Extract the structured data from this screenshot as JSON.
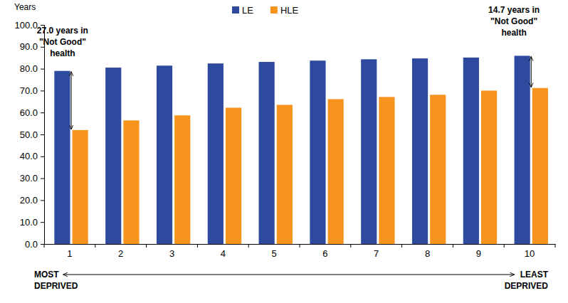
{
  "chart_data": {
    "type": "bar",
    "y_label": "Years",
    "categories": [
      "1",
      "2",
      "3",
      "4",
      "5",
      "6",
      "7",
      "8",
      "9",
      "10"
    ],
    "series": [
      {
        "name": "LE",
        "color": "#2E4A9E",
        "values": [
          79.0,
          80.5,
          81.4,
          82.4,
          83.1,
          83.7,
          84.3,
          84.7,
          85.1,
          85.9
        ]
      },
      {
        "name": "HLE",
        "color": "#F7941D",
        "values": [
          52.0,
          56.4,
          58.7,
          62.2,
          63.5,
          66.1,
          67.1,
          68.1,
          70.0,
          71.2
        ]
      }
    ],
    "ylim": [
      0,
      100
    ],
    "yticks": [
      {
        "value": 0,
        "label": "0.0"
      },
      {
        "value": 10,
        "label": "10.0"
      },
      {
        "value": 20,
        "label": "20.0"
      },
      {
        "value": 30,
        "label": "30.0"
      },
      {
        "value": 40,
        "label": "40.0"
      },
      {
        "value": 50,
        "label": "50.0"
      },
      {
        "value": 60,
        "label": "60.0"
      },
      {
        "value": 70,
        "label": "70.0"
      },
      {
        "value": 80,
        "label": "80.0"
      },
      {
        "value": 90,
        "label": "90.0"
      },
      {
        "value": 100,
        "label": "100.0"
      }
    ],
    "grid": false,
    "legend": "top",
    "annotations": [
      {
        "lines": [
          "27.0 years in",
          "\"Not Good\"",
          "health"
        ]
      },
      {
        "lines": [
          "14.7 years in",
          "\"Not Good\"",
          "health"
        ]
      }
    ],
    "x_axis_annotations": {
      "left": [
        "MOST",
        "DEPRIVED"
      ],
      "right": [
        "LEAST",
        "DEPRIVED"
      ]
    }
  }
}
